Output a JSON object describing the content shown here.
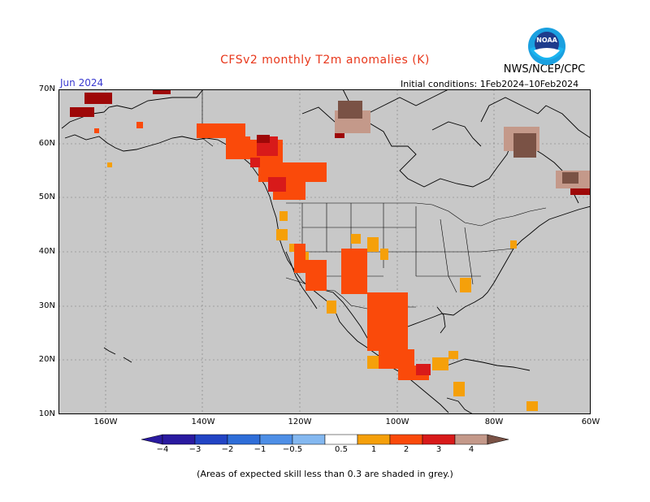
{
  "header": {
    "title": "CFSv2 monthly T2m anomalies (K)",
    "org": "NWS/NCEP/CPC",
    "logo_text": "NOAA",
    "month": "Jun 2024",
    "init": "Initial conditions: 1Feb2024–10Feb2024"
  },
  "map": {
    "lat_labels": [
      "70N",
      "60N",
      "50N",
      "40N",
      "30N",
      "20N",
      "10N"
    ],
    "lon_labels": [
      "160W",
      "140W",
      "120W",
      "100W",
      "80W",
      "60W"
    ],
    "background_color": "#c8c8c8"
  },
  "colorbar": {
    "labels": [
      "−4",
      "−3",
      "−2",
      "−1",
      "−0.5",
      "0.5",
      "1",
      "2",
      "3",
      "4"
    ],
    "colors": [
      "#2a1aa0",
      "#2244c4",
      "#2f6ed8",
      "#4e8fe6",
      "#84b8f0",
      "#ffffff",
      "#f5a00a",
      "#fa4a0a",
      "#d81a1a",
      "#9e0808",
      "#c4998a",
      "#7a5245"
    ]
  },
  "footnote": "(Areas of expected skill less than 0.3 are shaded in grey.)"
}
